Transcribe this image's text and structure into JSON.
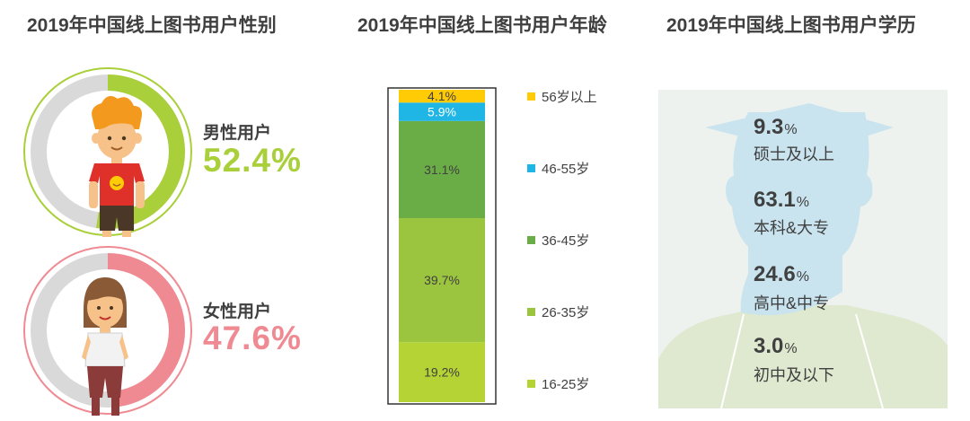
{
  "chart_data": [
    {
      "type": "pie",
      "title": "2019年中国线上图书用户性别",
      "series": [
        {
          "name": "男性用户",
          "value": 52.4,
          "value_label": "52.4%",
          "color": "#a9cf3a"
        },
        {
          "name": "女性用户",
          "value": 47.6,
          "value_label": "47.6%",
          "color": "#f08a92"
        }
      ]
    },
    {
      "type": "bar",
      "title": "2019年中国线上图书用户年龄",
      "stacked": true,
      "categories": [
        "16-25岁",
        "26-35岁",
        "36-45岁",
        "46-55岁",
        "56岁以上"
      ],
      "values": [
        19.2,
        39.7,
        31.1,
        5.9,
        4.1
      ],
      "value_labels": [
        "19.2%",
        "39.7%",
        "31.1%",
        "5.9%",
        "4.1%"
      ],
      "colors": [
        "#b5d334",
        "#9cc53f",
        "#6aac45",
        "#1fb6e6",
        "#ffcb05"
      ]
    },
    {
      "type": "bar",
      "title": "2019年中国线上图书用户学历",
      "categories": [
        "硕士及以上",
        "本科&大专",
        "高中&中专",
        "初中及以下"
      ],
      "values": [
        9.3,
        63.1,
        24.6,
        3.0
      ],
      "value_numbers": [
        "9.3",
        "63.1",
        "24.6",
        "3.0"
      ],
      "unit": "%"
    }
  ]
}
